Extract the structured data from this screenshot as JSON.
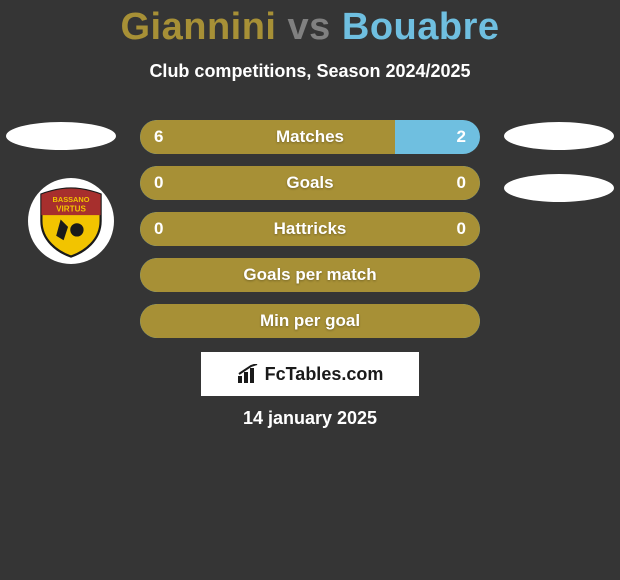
{
  "title": {
    "player1": "Giannini",
    "vs": " vs ",
    "player2": "Bouabre",
    "color1": "#a79036",
    "color_vs": "#808080",
    "color2": "#6fbfe0"
  },
  "subtitle": "Club competitions, Season 2024/2025",
  "colors": {
    "bar_left": "#a79036",
    "bar_right": "#6fbfe0",
    "bar_label_bg": "#a79036",
    "background": "#353535"
  },
  "bars": [
    {
      "label": "Matches",
      "left": "6",
      "right": "2",
      "left_pct": 75,
      "show_vals": true
    },
    {
      "label": "Goals",
      "left": "0",
      "right": "0",
      "left_pct": 100,
      "show_vals": true
    },
    {
      "label": "Hattricks",
      "left": "0",
      "right": "0",
      "left_pct": 100,
      "show_vals": true
    },
    {
      "label": "Goals per match",
      "left": "",
      "right": "",
      "left_pct": 100,
      "show_vals": false
    },
    {
      "label": "Min per goal",
      "left": "",
      "right": "",
      "left_pct": 100,
      "show_vals": false
    }
  ],
  "watermark": "FcTables.com",
  "date": "14 january 2025",
  "badge": {
    "top_text": "BASSANO",
    "mid_text": "VIRTUS",
    "colors": {
      "top": "#a72f2d",
      "bottom": "#f2c400",
      "stroke": "#1a1a1a"
    }
  }
}
